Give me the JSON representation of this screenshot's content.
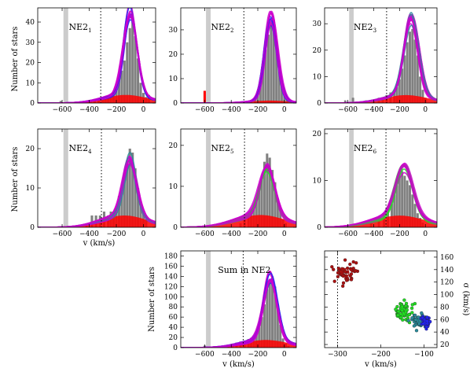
{
  "figure": {
    "ylabel_common": "Number of stars",
    "xlabel_common": "v (km/s)"
  },
  "colors": {
    "hist": "#808080",
    "band": "#cccccc",
    "red": "#ff0000",
    "magenta": "#cc00cc",
    "blue": "#2222ee",
    "teal": "#2a8a9a",
    "green": "#22dd22",
    "darkred": "#aa1010"
  },
  "chart_data": [
    {
      "id": "NE2_1",
      "type": "bar",
      "title": "NE2",
      "sub": "1",
      "xlim": [
        -780,
        90
      ],
      "ylim": [
        0,
        47
      ],
      "xticks": [
        -600,
        -400,
        -200,
        0
      ],
      "yticks": [
        0,
        10,
        20,
        30,
        40
      ],
      "ylabel": "Number of stars",
      "xlabel": "",
      "band": [
        -590,
        -555
      ],
      "dotted_x": -315,
      "main_peak": {
        "mu": -95,
        "sigma": 50,
        "amp": 42
      },
      "halo": {
        "mu": -130,
        "sigma": 160,
        "amp": 4
      },
      "curve_color": "magenta",
      "curve_color2": "blue",
      "bars": [
        [
          -610,
          1
        ],
        [
          -450,
          1
        ],
        [
          -420,
          1
        ],
        [
          -390,
          1
        ],
        [
          -360,
          2
        ],
        [
          -330,
          2
        ],
        [
          -300,
          2
        ],
        [
          -280,
          3
        ],
        [
          -260,
          3
        ],
        [
          -240,
          4
        ],
        [
          -220,
          5
        ],
        [
          -200,
          7
        ],
        [
          -180,
          12
        ],
        [
          -160,
          16
        ],
        [
          -140,
          21
        ],
        [
          -120,
          30
        ],
        [
          -100,
          37
        ],
        [
          -80,
          40
        ],
        [
          -60,
          33
        ],
        [
          -40,
          22
        ],
        [
          -20,
          10
        ],
        [
          0,
          5
        ],
        [
          20,
          3
        ],
        [
          40,
          4
        ]
      ]
    },
    {
      "id": "NE2_2",
      "type": "bar",
      "title": "NE2",
      "sub": "2",
      "xlim": [
        -780,
        90
      ],
      "ylim": [
        0,
        39
      ],
      "xticks": [
        -600,
        -400,
        -200,
        0
      ],
      "yticks": [
        0,
        10,
        20,
        30
      ],
      "ylabel": "",
      "xlabel": "",
      "band": [
        -590,
        -555
      ],
      "dotted_x": -305,
      "main_peak": {
        "mu": -100,
        "sigma": 48,
        "amp": 35
      },
      "halo": {
        "mu": -110,
        "sigma": 150,
        "amp": 1
      },
      "curve_color": "magenta",
      "curve_color2": "blue",
      "bars": [
        [
          -600,
          5
        ],
        [
          -250,
          1
        ],
        [
          -220,
          2
        ],
        [
          -200,
          4
        ],
        [
          -180,
          9
        ],
        [
          -160,
          15
        ],
        [
          -140,
          22
        ],
        [
          -120,
          28
        ],
        [
          -100,
          33
        ],
        [
          -80,
          34
        ],
        [
          -60,
          26
        ],
        [
          -40,
          17
        ],
        [
          -20,
          9
        ],
        [
          0,
          5
        ],
        [
          20,
          2
        ]
      ]
    },
    {
      "id": "NE2_3",
      "type": "bar",
      "title": "NE2",
      "sub": "3",
      "xlim": [
        -780,
        90
      ],
      "ylim": [
        0,
        36
      ],
      "xticks": [
        -600,
        -400,
        -200,
        0
      ],
      "yticks": [
        0,
        10,
        20,
        30
      ],
      "ylabel": "",
      "xlabel": "",
      "band": [
        -590,
        -555
      ],
      "dotted_x": -300,
      "main_peak": {
        "mu": -110,
        "sigma": 55,
        "amp": 30
      },
      "halo": {
        "mu": -150,
        "sigma": 170,
        "amp": 3
      },
      "curve_color": "magenta",
      "curve_color2": "teal",
      "bars": [
        [
          -620,
          1
        ],
        [
          -560,
          2
        ],
        [
          -460,
          1
        ],
        [
          -400,
          1
        ],
        [
          -360,
          2
        ],
        [
          -330,
          2
        ],
        [
          -300,
          3
        ],
        [
          -270,
          4
        ],
        [
          -240,
          5
        ],
        [
          -220,
          6
        ],
        [
          -200,
          9
        ],
        [
          -180,
          13
        ],
        [
          -160,
          18
        ],
        [
          -140,
          23
        ],
        [
          -120,
          27
        ],
        [
          -100,
          28
        ],
        [
          -80,
          24
        ],
        [
          -60,
          18
        ],
        [
          -40,
          10
        ],
        [
          -20,
          5
        ],
        [
          0,
          2
        ]
      ]
    },
    {
      "id": "NE2_4",
      "type": "bar",
      "title": "NE2",
      "sub": "4",
      "xlim": [
        -780,
        90
      ],
      "ylim": [
        0,
        25
      ],
      "xticks": [
        -600,
        -400,
        -200,
        0
      ],
      "yticks": [
        0,
        10,
        20
      ],
      "ylabel": "Number of stars",
      "xlabel": "",
      "band": [
        -590,
        -555
      ],
      "dotted_x": -310,
      "main_peak": {
        "mu": -100,
        "sigma": 50,
        "amp": 15
      },
      "halo": {
        "mu": -140,
        "sigma": 170,
        "amp": 3
      },
      "curve_color": "magenta",
      "curve_color2": "teal",
      "bars": [
        [
          -420,
          1
        ],
        [
          -380,
          3
        ],
        [
          -350,
          3
        ],
        [
          -320,
          3
        ],
        [
          -290,
          4
        ],
        [
          -260,
          3
        ],
        [
          -240,
          4
        ],
        [
          -220,
          4
        ],
        [
          -200,
          5
        ],
        [
          -180,
          8
        ],
        [
          -160,
          10
        ],
        [
          -140,
          14
        ],
        [
          -120,
          17
        ],
        [
          -100,
          20
        ],
        [
          -80,
          19
        ],
        [
          -60,
          15
        ],
        [
          -40,
          10
        ],
        [
          -20,
          6
        ],
        [
          0,
          4
        ],
        [
          20,
          2
        ]
      ]
    },
    {
      "id": "NE2_5",
      "type": "bar",
      "title": "NE2",
      "sub": "5",
      "xlim": [
        -780,
        90
      ],
      "ylim": [
        0,
        24
      ],
      "xticks": [
        -600,
        -400,
        -200,
        0
      ],
      "yticks": [
        0,
        10,
        20
      ],
      "ylabel": "",
      "xlabel": "",
      "band": [
        -590,
        -555
      ],
      "dotted_x": -300,
      "main_peak": {
        "mu": -130,
        "sigma": 55,
        "amp": 12
      },
      "halo": {
        "mu": -180,
        "sigma": 190,
        "amp": 3
      },
      "curve_color": "magenta",
      "curve_color2": "green",
      "bars": [
        [
          -330,
          1
        ],
        [
          -300,
          2
        ],
        [
          -270,
          3
        ],
        [
          -250,
          4
        ],
        [
          -230,
          5
        ],
        [
          -210,
          7
        ],
        [
          -190,
          10
        ],
        [
          -170,
          12
        ],
        [
          -150,
          16
        ],
        [
          -130,
          18
        ],
        [
          -110,
          17
        ],
        [
          -90,
          14
        ],
        [
          -70,
          11
        ],
        [
          -50,
          7
        ],
        [
          -30,
          4
        ],
        [
          -10,
          2
        ],
        [
          10,
          1
        ]
      ]
    },
    {
      "id": "NE2_6",
      "type": "bar",
      "title": "NE2",
      "sub": "6",
      "xlim": [
        -780,
        90
      ],
      "ylim": [
        0,
        21
      ],
      "xticks": [
        -600,
        -400,
        -200,
        0
      ],
      "yticks": [
        0,
        10,
        20
      ],
      "ylabel": "",
      "xlabel": "",
      "band": [
        -590,
        -555
      ],
      "dotted_x": -305,
      "main_peak": {
        "mu": -165,
        "sigma": 65,
        "amp": 11
      },
      "halo": {
        "mu": -200,
        "sigma": 200,
        "amp": 2.5
      },
      "curve_color": "magenta",
      "curve_color2": "green",
      "bars": [
        [
          -420,
          1
        ],
        [
          -360,
          2
        ],
        [
          -320,
          3
        ],
        [
          -290,
          4
        ],
        [
          -260,
          5
        ],
        [
          -240,
          7
        ],
        [
          -220,
          9
        ],
        [
          -200,
          11
        ],
        [
          -180,
          12
        ],
        [
          -160,
          11
        ],
        [
          -140,
          10
        ],
        [
          -120,
          9
        ],
        [
          -100,
          7
        ],
        [
          -80,
          5
        ],
        [
          -60,
          3
        ],
        [
          -40,
          2
        ],
        [
          -20,
          1
        ]
      ]
    },
    {
      "id": "Sum",
      "type": "bar",
      "title": "Sum in NE2",
      "sub": "",
      "xlim": [
        -780,
        90
      ],
      "ylim": [
        0,
        190
      ],
      "xticks": [
        -600,
        -400,
        -200,
        0
      ],
      "yticks": [
        0,
        20,
        40,
        60,
        80,
        100,
        120,
        140,
        160,
        180
      ],
      "ylabel": "Number of stars",
      "xlabel": "v (km/s)",
      "band": [
        -590,
        -555
      ],
      "dotted_x": -310,
      "main_peak": {
        "mu": -105,
        "sigma": 50,
        "amp": 128
      },
      "halo": {
        "mu": -140,
        "sigma": 170,
        "amp": 15
      },
      "curve_color": "magenta",
      "curve_color2": "blue",
      "bars": [
        [
          -600,
          4
        ],
        [
          -460,
          3
        ],
        [
          -420,
          6
        ],
        [
          -390,
          8
        ],
        [
          -360,
          10
        ],
        [
          -330,
          12
        ],
        [
          -300,
          14
        ],
        [
          -270,
          17
        ],
        [
          -250,
          19
        ],
        [
          -230,
          22
        ],
        [
          -210,
          27
        ],
        [
          -190,
          40
        ],
        [
          -170,
          60
        ],
        [
          -150,
          85
        ],
        [
          -130,
          115
        ],
        [
          -110,
          135
        ],
        [
          -90,
          140
        ],
        [
          -70,
          120
        ],
        [
          -50,
          85
        ],
        [
          -30,
          45
        ],
        [
          -10,
          18
        ],
        [
          10,
          8
        ],
        [
          30,
          3
        ]
      ]
    },
    {
      "id": "Scatter",
      "type": "scatter",
      "title": "",
      "sub": "",
      "xlim": [
        -330,
        -70
      ],
      "ylim": [
        15,
        170
      ],
      "xticks": [
        -300,
        -200,
        -100
      ],
      "yticks": [
        20,
        40,
        60,
        80,
        100,
        120,
        140,
        160
      ],
      "xlabel": "v (km/s)",
      "ylabel": "σ (km/s)",
      "dotted_x": -300,
      "clusters": [
        {
          "cx": -282,
          "cy": 135,
          "sx": 14,
          "sy": 11,
          "n": 45,
          "color": "darkred",
          "seed": 11
        },
        {
          "cx": -150,
          "cy": 73,
          "sx": 12,
          "sy": 8,
          "n": 60,
          "color": "green",
          "seed": 23
        },
        {
          "cx": -110,
          "cy": 58,
          "sx": 9,
          "sy": 5,
          "n": 70,
          "color": "teal",
          "seed": 37
        },
        {
          "cx": -95,
          "cy": 56,
          "sx": 6,
          "sy": 4,
          "n": 45,
          "color": "blue",
          "seed": 51
        }
      ]
    }
  ]
}
